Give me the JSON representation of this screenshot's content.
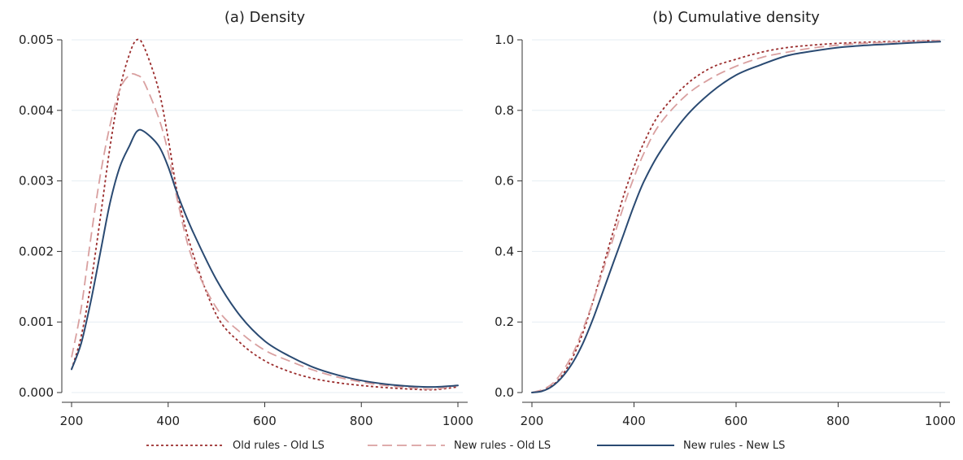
{
  "colors": {
    "old_rules_old_ls": "#9b2d2d",
    "new_rules_old_ls": "#d9a0a0",
    "new_rules_new_ls": "#2a4a72",
    "grid": "#e6eef3"
  },
  "legend": {
    "placement": "bottom",
    "items": [
      {
        "label": "Old rules - Old LS",
        "style": "dotted",
        "color_key": "old_rules_old_ls"
      },
      {
        "label": "New rules - Old LS",
        "style": "dashed",
        "color_key": "new_rules_old_ls"
      },
      {
        "label": "New rules - New LS",
        "style": "solid",
        "color_key": "new_rules_new_ls"
      }
    ]
  },
  "chart_data": [
    {
      "type": "line",
      "title": "(a) Density",
      "xlabel": "",
      "ylabel": "",
      "grid": true,
      "xlim": [
        200,
        1000
      ],
      "ylim": [
        0,
        0.005
      ],
      "xticks": [
        200,
        400,
        600,
        800,
        1000
      ],
      "xtick_labels": [
        "200",
        "400",
        "600",
        "800",
        "1000"
      ],
      "yticks": [
        0,
        0.001,
        0.002,
        0.003,
        0.004,
        0.005
      ],
      "ytick_labels": [
        "0.000",
        "0.001",
        "0.002",
        "0.003",
        "0.004",
        "0.005"
      ],
      "x": [
        200,
        220,
        240,
        260,
        280,
        300,
        320,
        335,
        350,
        380,
        400,
        420,
        450,
        500,
        550,
        600,
        650,
        700,
        750,
        800,
        850,
        900,
        950,
        1000
      ],
      "series": [
        {
          "name": "Old rules - Old LS",
          "style": "dotted",
          "color_key": "old_rules_old_ls",
          "values": [
            0.00033,
            0.0008,
            0.00155,
            0.0025,
            0.0035,
            0.0043,
            0.0048,
            0.005,
            0.0049,
            0.0043,
            0.0036,
            0.0028,
            0.002,
            0.0011,
            0.0007,
            0.00045,
            0.0003,
            0.0002,
            0.00014,
            0.0001,
            7e-05,
            5e-05,
            4e-05,
            8e-05
          ]
        },
        {
          "name": "New rules - Old LS",
          "style": "dashed",
          "color_key": "new_rules_old_ls",
          "values": [
            0.0005,
            0.0012,
            0.0022,
            0.0031,
            0.0038,
            0.0043,
            0.0045,
            0.0045,
            0.0044,
            0.0039,
            0.0034,
            0.0027,
            0.0019,
            0.0012,
            0.00085,
            0.0006,
            0.00045,
            0.00032,
            0.00022,
            0.00015,
            0.0001,
            7e-05,
            5e-05,
            0.0001
          ]
        },
        {
          "name": "New rules - New LS",
          "style": "solid",
          "color_key": "new_rules_new_ls",
          "values": [
            0.00033,
            0.0007,
            0.0013,
            0.002,
            0.0027,
            0.0032,
            0.0035,
            0.0037,
            0.0037,
            0.0035,
            0.0032,
            0.0028,
            0.0023,
            0.0016,
            0.00108,
            0.00073,
            0.00052,
            0.00036,
            0.00025,
            0.00017,
            0.00012,
            9e-05,
            8e-05,
            0.0001
          ]
        }
      ]
    },
    {
      "type": "line",
      "title": "(b) Cumulative density",
      "xlabel": "",
      "ylabel": "",
      "grid": true,
      "xlim": [
        200,
        1000
      ],
      "ylim": [
        0,
        1
      ],
      "xticks": [
        200,
        400,
        600,
        800,
        1000
      ],
      "xtick_labels": [
        "200",
        "400",
        "600",
        "800",
        "1000"
      ],
      "yticks": [
        0,
        0.2,
        0.4,
        0.6,
        0.8,
        1
      ],
      "ytick_labels": [
        "0.0",
        "0.2",
        "0.4",
        "0.6",
        "0.8",
        "1.0"
      ],
      "x": [
        200,
        220,
        240,
        260,
        280,
        300,
        320,
        340,
        360,
        380,
        400,
        420,
        450,
        500,
        550,
        600,
        650,
        700,
        750,
        800,
        850,
        900,
        950,
        1000
      ],
      "series": [
        {
          "name": "Old rules - Old LS",
          "style": "dotted",
          "color_key": "old_rules_old_ls",
          "values": [
            0,
            0.005,
            0.02,
            0.05,
            0.1,
            0.17,
            0.26,
            0.36,
            0.46,
            0.56,
            0.64,
            0.71,
            0.79,
            0.87,
            0.92,
            0.945,
            0.965,
            0.978,
            0.985,
            0.99,
            0.993,
            0.995,
            0.997,
            0.998
          ]
        },
        {
          "name": "New rules - Old LS",
          "style": "dashed",
          "color_key": "new_rules_old_ls",
          "values": [
            0,
            0.008,
            0.025,
            0.06,
            0.11,
            0.18,
            0.26,
            0.35,
            0.44,
            0.53,
            0.61,
            0.68,
            0.76,
            0.84,
            0.89,
            0.925,
            0.95,
            0.965,
            0.977,
            0.985,
            0.99,
            0.993,
            0.996,
            0.998
          ]
        },
        {
          "name": "New rules - New LS",
          "style": "solid",
          "color_key": "new_rules_new_ls",
          "values": [
            0,
            0.004,
            0.018,
            0.045,
            0.085,
            0.14,
            0.21,
            0.29,
            0.37,
            0.45,
            0.53,
            0.6,
            0.68,
            0.78,
            0.85,
            0.9,
            0.93,
            0.955,
            0.968,
            0.978,
            0.984,
            0.988,
            0.992,
            0.995
          ]
        }
      ]
    }
  ]
}
